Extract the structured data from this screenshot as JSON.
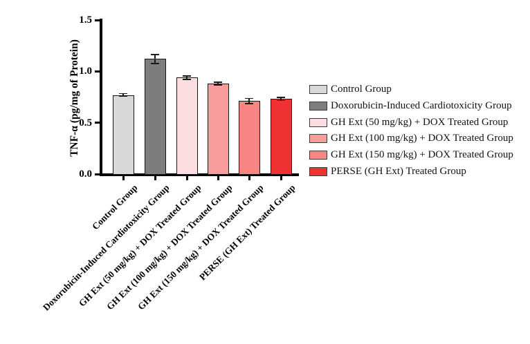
{
  "chart_data": {
    "type": "bar",
    "title": "",
    "xlabel": "",
    "ylabel": "TNF-α (pg/mg of Protein)",
    "ylim": [
      0.0,
      1.5
    ],
    "yticks": [
      0.0,
      0.5,
      1.0,
      1.5
    ],
    "ytick_labels": [
      "0.0",
      "0.5",
      "1.0",
      "1.5"
    ],
    "grid": false,
    "legend_position": "right",
    "categories": [
      "Control Group",
      "Doxorubicin-Induced Cardiotoxicity Group",
      "GH Ext (50 mg/kg) + DOX Treated Group",
      "GH Ext (100 mg/kg) + DOX Treated Group",
      "GH Ext (150 mg/kg) + DOX Treated Group",
      "PERSE (GH Ext) Treated Group"
    ],
    "values": [
      0.77,
      1.12,
      0.94,
      0.88,
      0.71,
      0.73
    ],
    "errors": [
      0.013,
      0.042,
      0.016,
      0.014,
      0.026,
      0.014
    ],
    "bar_colors": [
      "#d9d9d9",
      "#7d7d7d",
      "#fcdee1",
      "#f99c9c",
      "#f88484",
      "#ee3233"
    ],
    "bar_border_color": "#141414",
    "axis_color": "#000000",
    "background_color": "#ffffff",
    "legend": [
      {
        "label": "Control Group",
        "color": "#d9d9d9"
      },
      {
        "label": "Doxorubicin-Induced Cardiotoxicity Group",
        "color": "#7d7d7d"
      },
      {
        "label": "GH Ext (50 mg/kg) + DOX Treated Group",
        "color": "#fcdee1"
      },
      {
        "label": "GH Ext (100 mg/kg) + DOX Treated Group",
        "color": "#f99c9c"
      },
      {
        "label": "GH Ext (150 mg/kg) + DOX Treated Group",
        "color": "#f88484"
      },
      {
        "label": "PERSE (GH Ext) Treated Group",
        "color": "#ee3233"
      }
    ]
  }
}
